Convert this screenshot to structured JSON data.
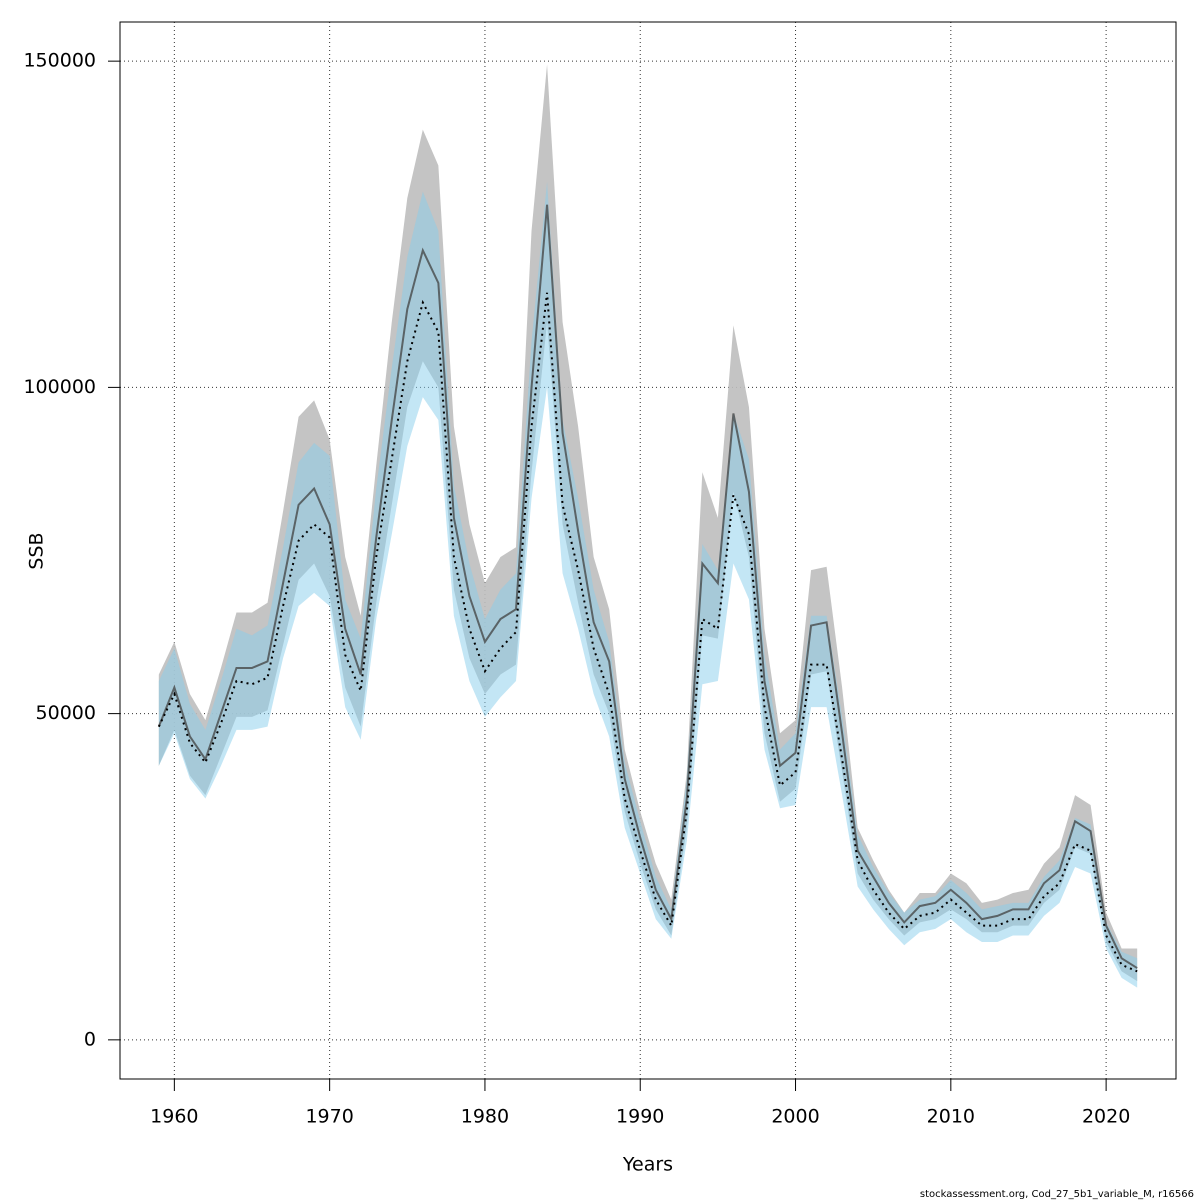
{
  "chart_data": {
    "type": "band-line",
    "xlabel": "Years",
    "ylabel": "SSB",
    "footnote": "stockassessment.org, Cod_27_5b1_variable_M, r16566",
    "x": [
      1959,
      1960,
      1961,
      1962,
      1963,
      1964,
      1965,
      1966,
      1967,
      1968,
      1969,
      1970,
      1971,
      1972,
      1973,
      1974,
      1975,
      1976,
      1977,
      1978,
      1979,
      1980,
      1981,
      1982,
      1983,
      1984,
      1985,
      1986,
      1987,
      1988,
      1989,
      1990,
      1991,
      1992,
      1993,
      1994,
      1995,
      1996,
      1997,
      1998,
      1999,
      2000,
      2001,
      2002,
      2003,
      2004,
      2005,
      2006,
      2007,
      2008,
      2009,
      2010,
      2011,
      2012,
      2013,
      2014,
      2015,
      2016,
      2017,
      2018,
      2019,
      2020,
      2021,
      2022
    ],
    "series": [
      {
        "color": "#404040",
        "band_color": "#bebebe",
        "band_opacity": 0.9,
        "linestyle": "solid",
        "values": [
          48000,
          54000,
          46500,
          43000,
          50000,
          57000,
          57000,
          58000,
          70000,
          82000,
          84500,
          79000,
          63000,
          56000,
          77000,
          95000,
          112000,
          121000,
          116000,
          80000,
          68000,
          61000,
          64500,
          66000,
          100000,
          128000,
          93000,
          78000,
          64000,
          58000,
          40000,
          31000,
          23000,
          18500,
          37000,
          73000,
          70000,
          96000,
          84000,
          55000,
          42000,
          44000,
          63500,
          64000,
          47000,
          29000,
          25000,
          21000,
          18000,
          20500,
          21000,
          23000,
          21000,
          18500,
          19000,
          20000,
          20000,
          24000,
          26000,
          33500,
          32000,
          17500,
          12500,
          11000
        ],
        "upper": [
          56000,
          61000,
          53000,
          49000,
          57000,
          65500,
          65500,
          67000,
          81000,
          95500,
          98000,
          92000,
          74000,
          65000,
          88000,
          110000,
          129000,
          139500,
          134000,
          94000,
          79000,
          70000,
          74000,
          75500,
          124000,
          149500,
          110000,
          94000,
          74000,
          66000,
          44500,
          35000,
          27000,
          21500,
          41000,
          87000,
          80000,
          109500,
          97000,
          63000,
          47000,
          49000,
          72000,
          72500,
          54000,
          32500,
          27500,
          23000,
          19500,
          22500,
          22500,
          25500,
          24000,
          21000,
          21500,
          22500,
          23000,
          27000,
          29500,
          37500,
          36000,
          19500,
          14000,
          14000
        ],
        "lower": [
          42000,
          47500,
          40500,
          37500,
          43500,
          49500,
          49500,
          50500,
          60500,
          70500,
          73000,
          68000,
          54000,
          48000,
          67000,
          82000,
          97000,
          104000,
          100000,
          69000,
          58500,
          53000,
          56000,
          57500,
          87000,
          110000,
          79000,
          67000,
          56000,
          50000,
          35000,
          27000,
          20000,
          16000,
          32500,
          62000,
          61500,
          84000,
          74000,
          47000,
          36500,
          38500,
          56000,
          56500,
          41000,
          25500,
          21500,
          18500,
          16000,
          18000,
          18500,
          20000,
          18500,
          16500,
          16500,
          17500,
          17500,
          21000,
          23000,
          29500,
          28500,
          15000,
          10500,
          9000
        ]
      },
      {
        "color": "#000000",
        "band_color": "#87ceeb",
        "band_opacity": 0.5,
        "linestyle": "dotted",
        "values": [
          48000,
          53000,
          45500,
          42500,
          48500,
          55000,
          54500,
          55500,
          66500,
          76500,
          79000,
          77000,
          59000,
          53500,
          74000,
          89000,
          104000,
          113000,
          108500,
          74000,
          63000,
          56500,
          60000,
          62500,
          94000,
          114500,
          82000,
          72000,
          60000,
          53000,
          37000,
          29000,
          21500,
          17500,
          35000,
          64500,
          63000,
          83500,
          77500,
          51000,
          39000,
          41000,
          57500,
          57500,
          43000,
          27500,
          23000,
          19500,
          17000,
          19000,
          19500,
          21500,
          19500,
          17500,
          17500,
          18500,
          18500,
          22000,
          24000,
          30000,
          29000,
          16000,
          11500,
          10500
        ],
        "upper": [
          55000,
          60000,
          51500,
          47500,
          55000,
          63000,
          62000,
          63500,
          75500,
          88500,
          91500,
          89500,
          67500,
          61500,
          84500,
          103000,
          120000,
          130000,
          124000,
          85000,
          73000,
          64500,
          69000,
          71500,
          107000,
          131500,
          95000,
          83000,
          69000,
          61000,
          42500,
          33500,
          25000,
          20000,
          40000,
          76000,
          72000,
          96000,
          89000,
          59000,
          44500,
          47000,
          65000,
          65000,
          49500,
          31500,
          26500,
          22500,
          19500,
          21500,
          22000,
          24500,
          22500,
          20000,
          20500,
          21000,
          21000,
          25000,
          27500,
          34000,
          33000,
          18000,
          13500,
          12500
        ],
        "lower": [
          42000,
          47000,
          40000,
          37000,
          42000,
          47500,
          47500,
          48000,
          58500,
          66500,
          68500,
          66500,
          51000,
          46000,
          64500,
          77500,
          91000,
          98500,
          95000,
          65000,
          55000,
          49500,
          52500,
          55000,
          83000,
          100000,
          71500,
          63000,
          53000,
          46500,
          32500,
          25500,
          18500,
          15500,
          30500,
          54500,
          55000,
          73000,
          67500,
          44500,
          35500,
          36000,
          51000,
          51000,
          37500,
          23500,
          20000,
          17000,
          14500,
          16500,
          17000,
          18500,
          16500,
          15000,
          15000,
          16000,
          16000,
          19000,
          21000,
          26500,
          25500,
          14000,
          9500,
          8000
        ]
      }
    ],
    "xlim": [
      1956.5,
      2024.5
    ],
    "ylim": [
      -6000,
      156000
    ],
    "xticks": [
      1960,
      1970,
      1980,
      1990,
      2000,
      2010,
      2020
    ],
    "yticks": [
      0,
      50000,
      100000,
      150000
    ],
    "grid": true
  }
}
